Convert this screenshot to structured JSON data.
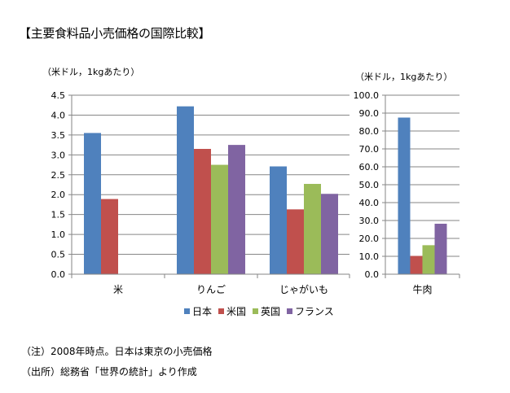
{
  "title": "【主要食料品小売価格の国際比較】",
  "colors": {
    "日本": "#4f81bd",
    "米国": "#c0504d",
    "英国": "#9bbb59",
    "フランス": "#8064a2",
    "grid": "#868686"
  },
  "chart_data": [
    {
      "type": "bar",
      "unit_label": "（米ドル，1kgあたり）",
      "categories": [
        "米",
        "りんご",
        "じゃがいも"
      ],
      "series": [
        {
          "name": "日本",
          "values": [
            3.55,
            4.22,
            2.71
          ]
        },
        {
          "name": "米国",
          "values": [
            1.89,
            3.15,
            1.63
          ]
        },
        {
          "name": "英国",
          "values": [
            null,
            2.75,
            2.27
          ]
        },
        {
          "name": "フランス",
          "values": [
            null,
            3.25,
            2.02
          ]
        }
      ],
      "ylim": [
        0,
        4.5
      ],
      "yticks": [
        "0.0",
        "0.5",
        "1.0",
        "1.5",
        "2.0",
        "2.5",
        "3.0",
        "3.5",
        "4.0",
        "4.5"
      ],
      "grid": true
    },
    {
      "type": "bar",
      "unit_label": "（米ドル，1kgあたり）",
      "categories": [
        "牛肉"
      ],
      "series": [
        {
          "name": "日本",
          "values": [
            87.5
          ]
        },
        {
          "name": "米国",
          "values": [
            10.2
          ]
        },
        {
          "name": "英国",
          "values": [
            16.2
          ]
        },
        {
          "name": "フランス",
          "values": [
            28.2
          ]
        }
      ],
      "ylim": [
        0,
        100
      ],
      "yticks": [
        "0.0",
        "10.0",
        "20.0",
        "30.0",
        "40.0",
        "50.0",
        "60.0",
        "70.0",
        "80.0",
        "90.0",
        "100.0"
      ],
      "grid": true
    }
  ],
  "legend": [
    "日本",
    "米国",
    "英国",
    "フランス"
  ],
  "notes": {
    "note1": "（注）2008年時点。日本は東京の小売価格",
    "note2": "（出所）総務省「世界の統計」より作成"
  }
}
